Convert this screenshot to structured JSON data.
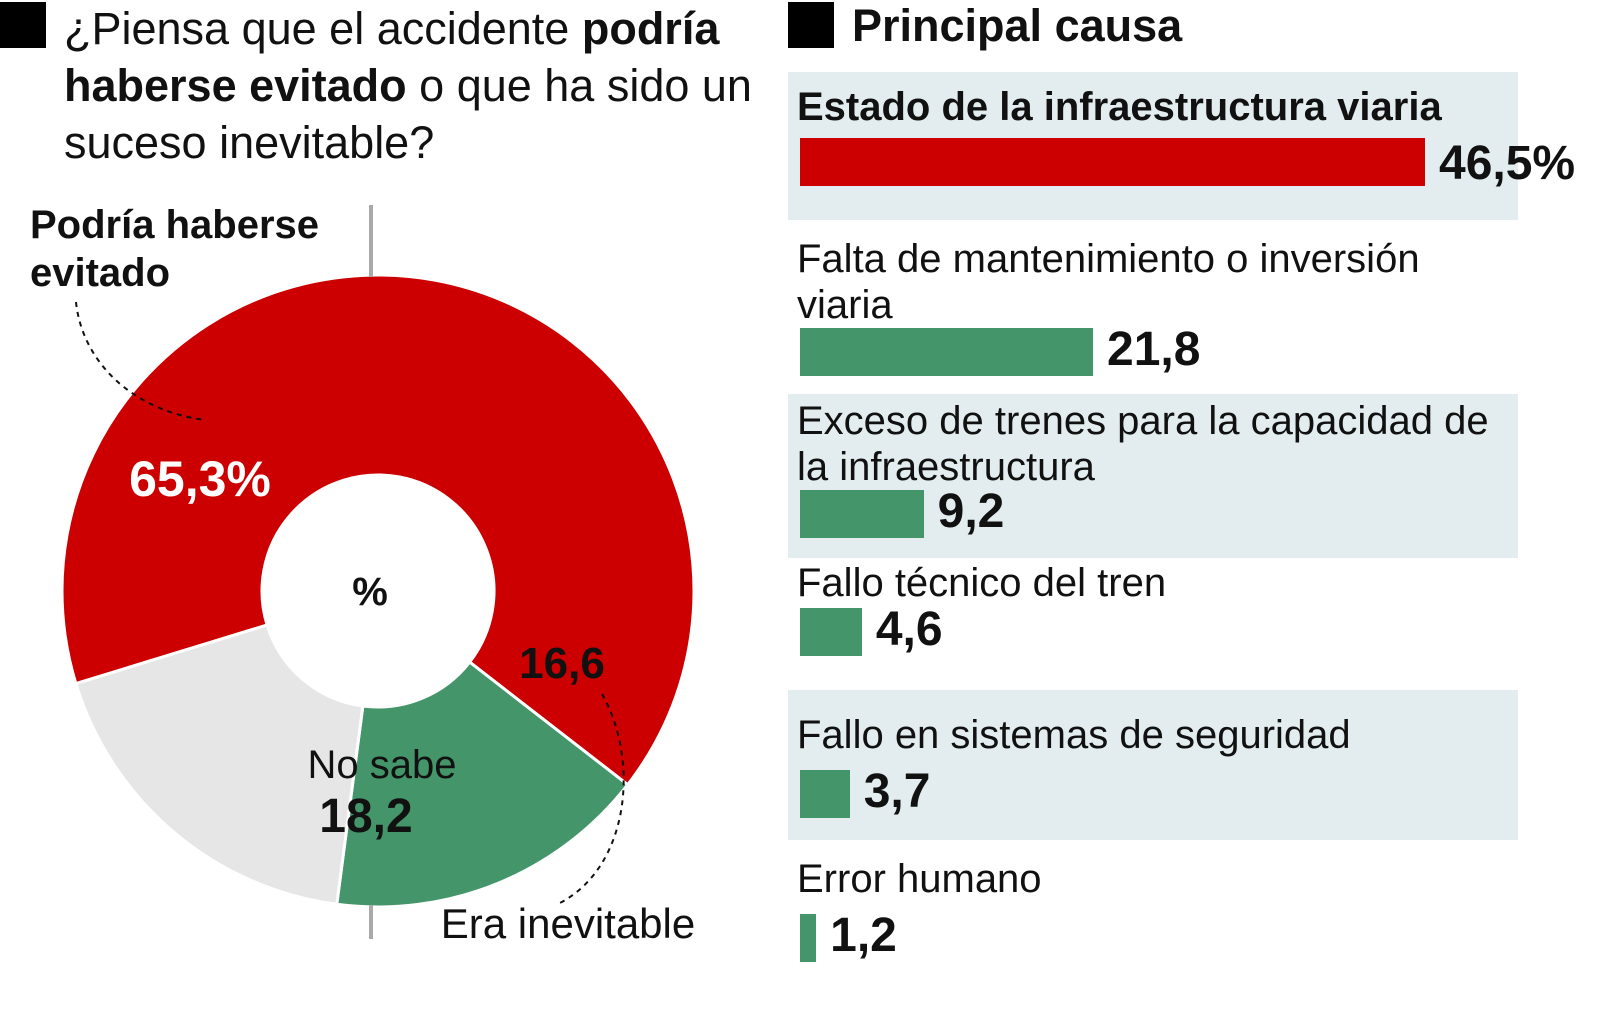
{
  "left_title": {
    "part1": "¿Piensa que el accidente ",
    "part2_bold": "podría haberse evitado",
    "part3": " o que ha sido un suceso inevitable?"
  },
  "right_title": "Principal causa",
  "colors": {
    "red": "#cc0000",
    "green": "#44966a",
    "gray": "#e6e6e6",
    "shade": "#e3edef"
  },
  "chart_data": [
    {
      "type": "pie",
      "title": "¿Piensa que el accidente podría haberse evitado o que ha sido un suceso inevitable?",
      "center_label": "%",
      "slices": [
        {
          "name": "Podría haberse evitado",
          "value": 65.3,
          "label": "65,3%",
          "color": "#cc0000"
        },
        {
          "name": "Era inevitable",
          "value": 16.6,
          "label": "16,6",
          "color": "#44966a"
        },
        {
          "name": "No sabe",
          "value": 18.2,
          "label": "18,2",
          "color": "#e6e6e6"
        }
      ]
    },
    {
      "type": "bar",
      "title": "Principal causa",
      "categories": [
        "Estado de la infraestructura viaria",
        "Falta de mantenimiento o inversión viaria",
        "Exceso de trenes para la capacidad de la infraestructura",
        "Fallo técnico del tren",
        "Fallo en sistemas de seguridad",
        "Error humano"
      ],
      "values": [
        46.5,
        21.8,
        9.2,
        4.6,
        3.7,
        1.2
      ],
      "value_labels": [
        "46,5%",
        "21,8",
        "9,2",
        "4,6",
        "3,7",
        "1,2"
      ]
    }
  ]
}
